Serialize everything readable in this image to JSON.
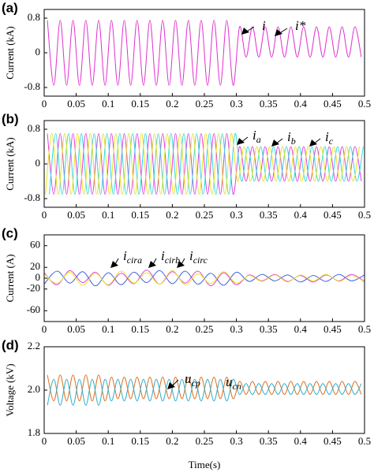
{
  "chart_data": [
    {
      "type": "line",
      "panel_label": "(a)",
      "ylabel": "Current (kA)",
      "xlim": [
        0,
        0.5
      ],
      "xticks": [
        0,
        0.05,
        0.1,
        0.15,
        0.2,
        0.25,
        0.3,
        0.35,
        0.4,
        0.45,
        0.5
      ],
      "ylim": [
        -1,
        1
      ],
      "yticks": [
        -0.8,
        0,
        0.8
      ],
      "annotations": [
        {
          "text": "i"
        },
        {
          "text": "i*"
        }
      ],
      "x": [
        0.005,
        0.015,
        0.025,
        0.035,
        0.045,
        0.055,
        0.065,
        0.075,
        0.085,
        0.095,
        0.105,
        0.115,
        0.125,
        0.135,
        0.145,
        0.155,
        0.165,
        0.175,
        0.185,
        0.195,
        0.205,
        0.215,
        0.225,
        0.235,
        0.245,
        0.255,
        0.265,
        0.275,
        0.285,
        0.295,
        0.305,
        0.315,
        0.325,
        0.335,
        0.345,
        0.355,
        0.365,
        0.375,
        0.385,
        0.395,
        0.405,
        0.415,
        0.425,
        0.435,
        0.445,
        0.455,
        0.465,
        0.475,
        0.485,
        0.495
      ],
      "series": [
        {
          "color": "#e030d0",
          "values": [
            0.75,
            -0.75,
            0.75,
            -0.75,
            0.75,
            -0.75,
            0.75,
            -0.75,
            0.75,
            -0.75,
            0.75,
            -0.75,
            0.75,
            -0.75,
            0.75,
            -0.75,
            0.75,
            -0.75,
            0.75,
            -0.75,
            0.75,
            -0.75,
            0.75,
            -0.75,
            0.75,
            -0.75,
            0.75,
            -0.75,
            0.75,
            -0.75,
            0.6,
            -0.1,
            0.6,
            -0.1,
            0.6,
            -0.1,
            0.6,
            -0.1,
            0.6,
            -0.1,
            0.6,
            -0.1,
            0.6,
            -0.1,
            0.6,
            -0.1,
            0.6,
            -0.1,
            0.6,
            -0.1
          ]
        }
      ]
    },
    {
      "type": "line",
      "panel_label": "(b)",
      "ylabel": "Current (kA)",
      "xlim": [
        0,
        0.5
      ],
      "xticks": [
        0,
        0.05,
        0.1,
        0.15,
        0.2,
        0.25,
        0.3,
        0.35,
        0.4,
        0.45,
        0.5
      ],
      "ylim": [
        -1,
        1
      ],
      "yticks": [
        -0.8,
        0,
        0.8
      ],
      "annotations": [
        {
          "text": "i",
          "sub": "a"
        },
        {
          "text": "i",
          "sub": "b"
        },
        {
          "text": "i",
          "sub": "c"
        }
      ],
      "series": [
        {
          "color": "#e040e0",
          "x": [
            0.005,
            0.015,
            0.025,
            0.035,
            0.045,
            0.055,
            0.065,
            0.075,
            0.085,
            0.095,
            0.105,
            0.115,
            0.125,
            0.135,
            0.145,
            0.155,
            0.165,
            0.175,
            0.185,
            0.195,
            0.205,
            0.215,
            0.225,
            0.235,
            0.245,
            0.255,
            0.265,
            0.275,
            0.285,
            0.295,
            0.305,
            0.315,
            0.325,
            0.335,
            0.345,
            0.355,
            0.365,
            0.375,
            0.385,
            0.395,
            0.405,
            0.415,
            0.425,
            0.435,
            0.445,
            0.455,
            0.465,
            0.475,
            0.485,
            0.495
          ],
          "values": [
            0.7,
            -0.7,
            0.7,
            -0.7,
            0.7,
            -0.7,
            0.7,
            -0.7,
            0.7,
            -0.7,
            0.7,
            -0.7,
            0.7,
            -0.7,
            0.7,
            -0.7,
            0.7,
            -0.7,
            0.7,
            -0.7,
            0.7,
            -0.7,
            0.7,
            -0.7,
            0.7,
            -0.7,
            0.7,
            -0.7,
            0.7,
            -0.7,
            0.4,
            -0.4,
            0.4,
            -0.4,
            0.4,
            -0.4,
            0.4,
            -0.4,
            0.4,
            -0.4,
            0.4,
            -0.4,
            0.4,
            -0.4,
            0.4,
            -0.4,
            0.4,
            -0.4,
            0.4,
            -0.4
          ]
        },
        {
          "color": "#30d8e0",
          "x": [
            0.008,
            0.018,
            0.028,
            0.038,
            0.048,
            0.058,
            0.068,
            0.078,
            0.088,
            0.098,
            0.108,
            0.118,
            0.128,
            0.138,
            0.148,
            0.158,
            0.168,
            0.178,
            0.188,
            0.198,
            0.208,
            0.218,
            0.228,
            0.238,
            0.248,
            0.258,
            0.268,
            0.278,
            0.288,
            0.298,
            0.308,
            0.318,
            0.328,
            0.338,
            0.348,
            0.358,
            0.368,
            0.378,
            0.388,
            0.398,
            0.408,
            0.418,
            0.428,
            0.438,
            0.448,
            0.458,
            0.468,
            0.478,
            0.488,
            0.498
          ],
          "values": [
            -0.7,
            0.7,
            -0.7,
            0.7,
            -0.7,
            0.7,
            -0.7,
            0.7,
            -0.7,
            0.7,
            -0.7,
            0.7,
            -0.7,
            0.7,
            -0.7,
            0.7,
            -0.7,
            0.7,
            -0.7,
            0.7,
            -0.7,
            0.7,
            -0.7,
            0.7,
            -0.7,
            0.7,
            -0.7,
            0.7,
            -0.7,
            0.7,
            -0.4,
            0.4,
            -0.4,
            0.4,
            -0.4,
            0.4,
            -0.4,
            0.4,
            -0.4,
            0.4,
            -0.4,
            0.4,
            -0.4,
            0.4,
            -0.4,
            0.4,
            -0.4,
            0.4,
            -0.4,
            0.4
          ]
        },
        {
          "color": "#e8e020",
          "x": [
            0.002,
            0.012,
            0.022,
            0.032,
            0.042,
            0.052,
            0.062,
            0.072,
            0.082,
            0.092,
            0.102,
            0.112,
            0.122,
            0.132,
            0.142,
            0.152,
            0.162,
            0.172,
            0.182,
            0.192,
            0.202,
            0.212,
            0.222,
            0.232,
            0.242,
            0.252,
            0.262,
            0.272,
            0.282,
            0.292,
            0.302,
            0.312,
            0.322,
            0.332,
            0.342,
            0.352,
            0.362,
            0.372,
            0.382,
            0.392,
            0.402,
            0.412,
            0.422,
            0.432,
            0.442,
            0.452,
            0.462,
            0.472,
            0.482,
            0.492
          ],
          "values": [
            -0.7,
            0.7,
            -0.7,
            0.7,
            -0.7,
            0.7,
            -0.7,
            0.7,
            -0.7,
            0.7,
            -0.7,
            0.7,
            -0.7,
            0.7,
            -0.7,
            0.7,
            -0.7,
            0.7,
            -0.7,
            0.7,
            -0.7,
            0.7,
            -0.7,
            0.7,
            -0.7,
            0.7,
            -0.7,
            0.7,
            -0.7,
            0.7,
            -0.4,
            0.4,
            -0.4,
            0.4,
            -0.4,
            0.4,
            -0.4,
            0.4,
            -0.4,
            0.4,
            -0.4,
            0.4,
            -0.4,
            0.4,
            -0.4,
            0.4,
            -0.4,
            0.4,
            -0.4,
            0.4
          ]
        }
      ]
    },
    {
      "type": "line",
      "panel_label": "(c)",
      "ylabel": "Current (A)",
      "xlim": [
        0,
        0.5
      ],
      "xticks": [
        0,
        0.05,
        0.1,
        0.15,
        0.2,
        0.25,
        0.3,
        0.35,
        0.4,
        0.45,
        0.5
      ],
      "ylim": [
        -80,
        80
      ],
      "yticks": [
        -60,
        -20,
        0,
        20,
        60
      ],
      "annotations": [
        {
          "text": "i",
          "sub": "cira"
        },
        {
          "text": "i",
          "sub": "cirb"
        },
        {
          "text": "i",
          "sub": "circ"
        }
      ],
      "x": [
        0,
        0.02,
        0.04,
        0.06,
        0.08,
        0.1,
        0.12,
        0.14,
        0.16,
        0.18,
        0.2,
        0.22,
        0.24,
        0.26,
        0.28,
        0.3,
        0.32,
        0.34,
        0.36,
        0.38,
        0.4,
        0.42,
        0.44,
        0.46,
        0.48,
        0.5
      ],
      "series": [
        {
          "color": "#e040e0",
          "values": [
            10,
            -12,
            14,
            -8,
            11,
            -13,
            9,
            -10,
            15,
            -11,
            12,
            -9,
            13,
            -14,
            10,
            -12,
            6,
            -5,
            7,
            -6,
            5,
            -7,
            6,
            -5,
            7,
            -6
          ]
        },
        {
          "color": "#4060e0",
          "values": [
            -11,
            13,
            -9,
            12,
            -14,
            10,
            -12,
            11,
            -8,
            14,
            -10,
            13,
            -11,
            9,
            -13,
            11,
            -6,
            7,
            -5,
            6,
            -7,
            5,
            -6,
            7,
            -5,
            6
          ]
        },
        {
          "color": "#e8e820",
          "values": [
            8,
            -10,
            11,
            -13,
            9,
            -12,
            13,
            -9,
            10,
            -11,
            14,
            -12,
            8,
            -10,
            12,
            -9,
            5,
            -6,
            6,
            -7,
            6,
            -5,
            7,
            -6,
            5,
            -7
          ]
        }
      ]
    },
    {
      "type": "line",
      "panel_label": "(d)",
      "ylabel": "Voltage (kV)",
      "xlabel": "Time(s)",
      "xlim": [
        0,
        0.5
      ],
      "xticks": [
        0,
        0.05,
        0.1,
        0.15,
        0.2,
        0.25,
        0.3,
        0.35,
        0.4,
        0.45,
        0.5
      ],
      "ylim": [
        1.8,
        2.2
      ],
      "yticks": [
        1.8,
        {
          "value": 2,
          "label": "2.0"
        },
        2.2
      ],
      "annotations": [
        {
          "text": "u",
          "sub": "cp"
        },
        {
          "text": "u",
          "sub": "cn"
        }
      ],
      "x": [
        0.005,
        0.015,
        0.025,
        0.035,
        0.045,
        0.055,
        0.065,
        0.075,
        0.085,
        0.095,
        0.105,
        0.115,
        0.125,
        0.135,
        0.145,
        0.155,
        0.165,
        0.175,
        0.185,
        0.195,
        0.205,
        0.215,
        0.225,
        0.235,
        0.245,
        0.255,
        0.265,
        0.275,
        0.285,
        0.295,
        0.305,
        0.315,
        0.325,
        0.335,
        0.345,
        0.355,
        0.365,
        0.375,
        0.385,
        0.395,
        0.405,
        0.415,
        0.425,
        0.435,
        0.445,
        0.455,
        0.465,
        0.475,
        0.485,
        0.495
      ],
      "series": [
        {
          "color": "#e07020",
          "values": [
            2.07,
            1.95,
            2.07,
            1.95,
            2.07,
            1.95,
            2.07,
            1.95,
            2.07,
            1.95,
            2.06,
            1.96,
            2.06,
            1.96,
            2.06,
            1.96,
            2.06,
            1.96,
            2.06,
            1.96,
            2.06,
            1.96,
            2.06,
            1.96,
            2.06,
            1.96,
            2.06,
            1.96,
            2.06,
            1.96,
            2.04,
            1.98,
            2.04,
            1.98,
            2.04,
            1.98,
            2.04,
            1.98,
            2.04,
            1.98,
            2.04,
            1.98,
            2.04,
            1.98,
            2.04,
            1.98,
            2.04,
            1.98,
            2.04,
            1.98
          ]
        },
        {
          "color": "#30b0d0",
          "values": [
            1.93,
            2.05,
            1.93,
            2.05,
            1.93,
            2.05,
            1.93,
            2.05,
            1.93,
            2.05,
            1.95,
            2.05,
            1.95,
            2.05,
            1.95,
            2.05,
            1.95,
            2.05,
            1.95,
            2.05,
            1.95,
            2.05,
            1.95,
            2.05,
            1.95,
            2.05,
            1.95,
            2.05,
            1.95,
            2.05,
            1.98,
            2.03,
            1.98,
            2.03,
            1.98,
            2.03,
            1.98,
            2.03,
            1.98,
            2.03,
            1.98,
            2.03,
            1.98,
            2.03,
            1.98,
            2.03,
            1.98,
            2.03,
            1.98,
            2.03
          ]
        }
      ]
    }
  ]
}
